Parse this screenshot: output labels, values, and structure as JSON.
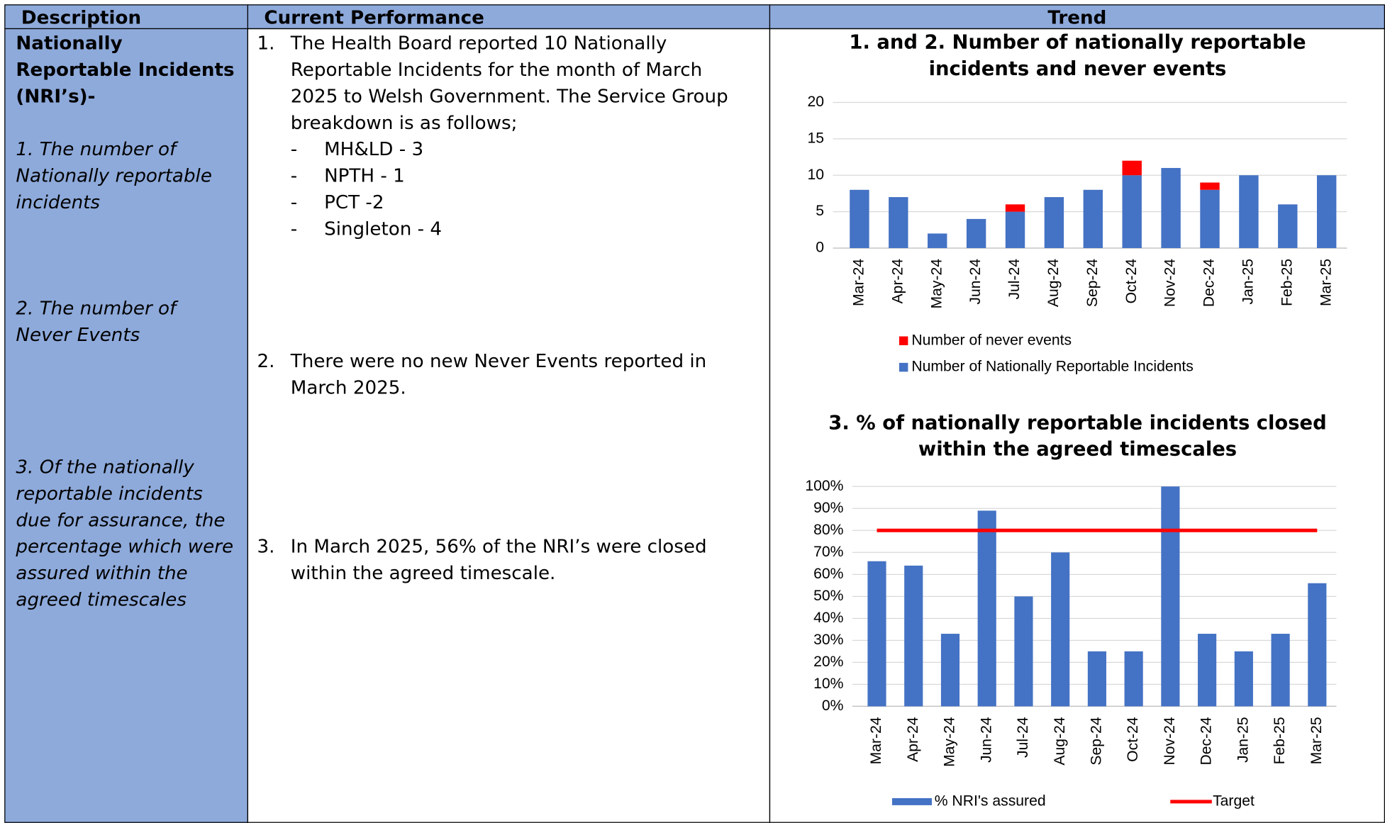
{
  "table": {
    "headers": [
      "Description",
      "Current Performance",
      "Trend"
    ],
    "description": {
      "title": "Nationally Reportable Incidents (NRI’s)-",
      "items": [
        "1. The number of Nationally reportable incidents",
        "2. The number of Never Events",
        "3. Of the nationally reportable incidents due for assurance, the percentage which were assured within the agreed timescales"
      ]
    },
    "performance": [
      {
        "number": "1.",
        "text": "The Health Board reported 10 Nationally Reportable Incidents for the month of March 2025 to Welsh Government. The Service Group breakdown is as follows;",
        "bullets": [
          "MH&LD - 3",
          "NPTH - 1",
          "PCT -2",
          "Singleton - 4"
        ]
      },
      {
        "number": "2.",
        "text": "There were no new Never Events reported in March 2025."
      },
      {
        "number": "3.",
        "text": "In March 2025, 56% of the NRI’s were closed within the agreed timescale."
      }
    ]
  },
  "chart_data": [
    {
      "type": "bar",
      "stacked": true,
      "title": [
        "1. and 2. Number of nationally reportable",
        "incidents and never events"
      ],
      "categories": [
        "Mar-24",
        "Apr-24",
        "May-24",
        "Jun-24",
        "Jul-24",
        "Aug-24",
        "Sep-24",
        "Oct-24",
        "Nov-24",
        "Dec-24",
        "Jan-25",
        "Feb-25",
        "Mar-25"
      ],
      "series": [
        {
          "name": "Number of Nationally Reportable Incidents",
          "color": "#4472c4",
          "values": [
            8,
            7,
            2,
            4,
            5,
            7,
            8,
            10,
            11,
            8,
            10,
            6,
            10
          ]
        },
        {
          "name": "Number of never events",
          "color": "#ff0000",
          "values": [
            0,
            0,
            0,
            0,
            1,
            0,
            0,
            2,
            0,
            1,
            0,
            0,
            0
          ]
        }
      ],
      "ylim": [
        0,
        20
      ],
      "yticks": [
        0,
        5,
        10,
        15,
        20
      ],
      "grid": true,
      "legend": "bottom"
    },
    {
      "type": "bar",
      "title": [
        "3. % of nationally reportable incidents closed",
        "within the agreed timescales"
      ],
      "categories": [
        "Mar-24",
        "Apr-24",
        "May-24",
        "Jun-24",
        "Jul-24",
        "Aug-24",
        "Sep-24",
        "Oct-24",
        "Nov-24",
        "Dec-24",
        "Jan-25",
        "Feb-25",
        "Mar-25"
      ],
      "series": [
        {
          "name": "% NRI's assured",
          "color": "#4472c4",
          "values": [
            66,
            64,
            33,
            89,
            50,
            70,
            25,
            25,
            100,
            33,
            25,
            33,
            56
          ]
        },
        {
          "name": "Target",
          "color": "#ff0000",
          "type": "line",
          "values": [
            80,
            80,
            80,
            80,
            80,
            80,
            80,
            80,
            80,
            80,
            80,
            80,
            80
          ]
        }
      ],
      "ylim": [
        0,
        100
      ],
      "yticks": [
        {
          "value": 0,
          "label": "0%"
        },
        {
          "value": 10,
          "label": "10%"
        },
        {
          "value": 20,
          "label": "20%"
        },
        {
          "value": 30,
          "label": "30%"
        },
        {
          "value": 40,
          "label": "40%"
        },
        {
          "value": 50,
          "label": "50%"
        },
        {
          "value": 60,
          "label": "60%"
        },
        {
          "value": 70,
          "label": "70%"
        },
        {
          "value": 80,
          "label": "80%"
        },
        {
          "value": 90,
          "label": "90%"
        },
        {
          "value": 100,
          "label": "100%"
        }
      ],
      "grid": true,
      "legend": "bottom"
    }
  ]
}
